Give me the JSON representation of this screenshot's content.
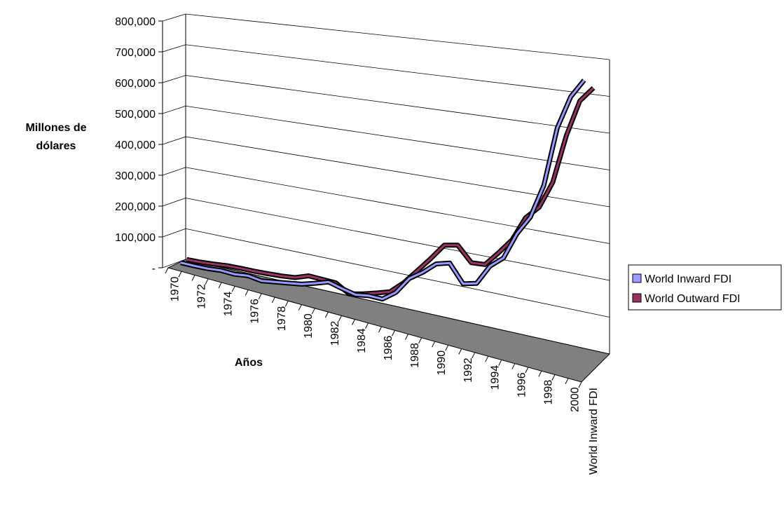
{
  "chart_data": {
    "type": "line3d",
    "y_label": "Millones de dólares",
    "x_label": "Años",
    "depth_labels": [
      "World Inward FDI"
    ],
    "categories": [
      "1970",
      null,
      "1972",
      null,
      "1974",
      null,
      "1976",
      null,
      "1978",
      null,
      "1980",
      null,
      "1982",
      null,
      "1984",
      null,
      "1986",
      null,
      "1988",
      null,
      "1990",
      null,
      "1992",
      null,
      "1994",
      null,
      "1996",
      null,
      "1998",
      null,
      "2000"
    ],
    "series": [
      {
        "name": "World Inward FDI",
        "color": "#9999ff",
        "values": [
          13000,
          14000,
          16000,
          21000,
          20000,
          26000,
          21000,
          28000,
          35000,
          42000,
          55000,
          69000,
          59000,
          51000,
          58000,
          58000,
          87000,
          137000,
          164000,
          197000,
          208000,
          158000,
          168000,
          225000,
          256000,
          331000,
          384000,
          478000,
          640000,
          730000,
          780000
        ]
      },
      {
        "name": "World Outward FDI",
        "color": "#993366",
        "values": [
          14000,
          16000,
          20000,
          25000,
          27000,
          28000,
          30000,
          33000,
          38000,
          53000,
          52000,
          51000,
          27000,
          37000,
          49000,
          62000,
          97000,
          141000,
          185000,
          232000,
          240000,
          198000,
          201000,
          242000,
          286000,
          355000,
          391000,
          466000,
          600000,
          700000,
          740000
        ]
      }
    ],
    "ylim": [
      0,
      800000
    ],
    "yticks": [
      {
        "value": 0,
        "label": "-"
      },
      {
        "value": 100000,
        "label": "100,000"
      },
      {
        "value": 200000,
        "label": "200,000"
      },
      {
        "value": 300000,
        "label": "300,000"
      },
      {
        "value": 400000,
        "label": "400,000"
      },
      {
        "value": 500000,
        "label": "500,000"
      },
      {
        "value": 600000,
        "label": "600,000"
      },
      {
        "value": 700000,
        "label": "700,000"
      },
      {
        "value": 800000,
        "label": "800,000"
      }
    ],
    "grid": true,
    "legend": "right"
  }
}
